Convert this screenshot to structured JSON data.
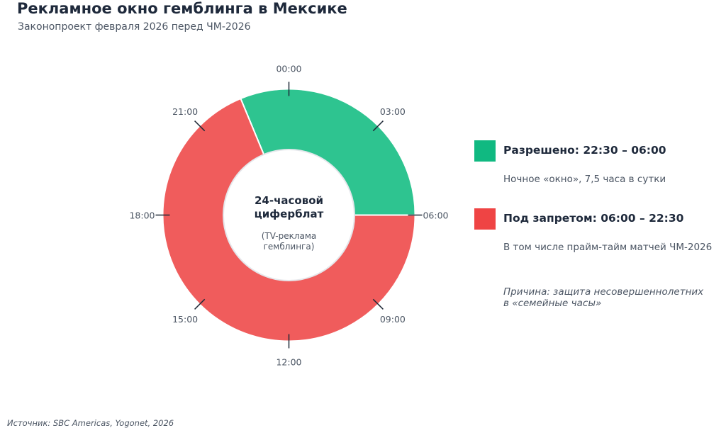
{
  "header": {
    "title": "Рекламное окно гемблинга в Мексике",
    "subtitle": "Законопроект февраля 2026 перед ЧМ-2026"
  },
  "chart_data": {
    "type": "pie",
    "variant": "donut",
    "unit": "hours",
    "total": 24,
    "center_label": {
      "line1": "24-часовой",
      "line2": "циферблат",
      "note1": "(TV-реклама",
      "note2": "гемблинга)"
    },
    "clock_labels": [
      "00:00",
      "03:00",
      "06:00",
      "09:00",
      "12:00",
      "15:00",
      "18:00",
      "21:00"
    ],
    "slices": [
      {
        "name": "Разрешено",
        "start": 22.5,
        "end": 6.0,
        "hours": 7.5,
        "color": "#2ec490"
      },
      {
        "name": "Под запретом",
        "start": 6.0,
        "end": 22.5,
        "hours": 16.5,
        "color": "#f05c5c"
      }
    ]
  },
  "legend": {
    "items": [
      {
        "label": "Разрешено: 22:30 – 06:00",
        "desc": "Ночное «окно», 7,5 часа в сутки",
        "color": "#10b981"
      },
      {
        "label": "Под запретом: 06:00 – 22:30",
        "desc": "В том числе прайм-тайм матчей ЧМ-2026",
        "color": "#ef4444"
      }
    ],
    "reason": {
      "line1": "Причина: защита несовершеннолетних",
      "line2": "в «семейные часы»"
    }
  },
  "footer": {
    "source": "Источник: SBC Americas, Yogonet, 2026"
  }
}
